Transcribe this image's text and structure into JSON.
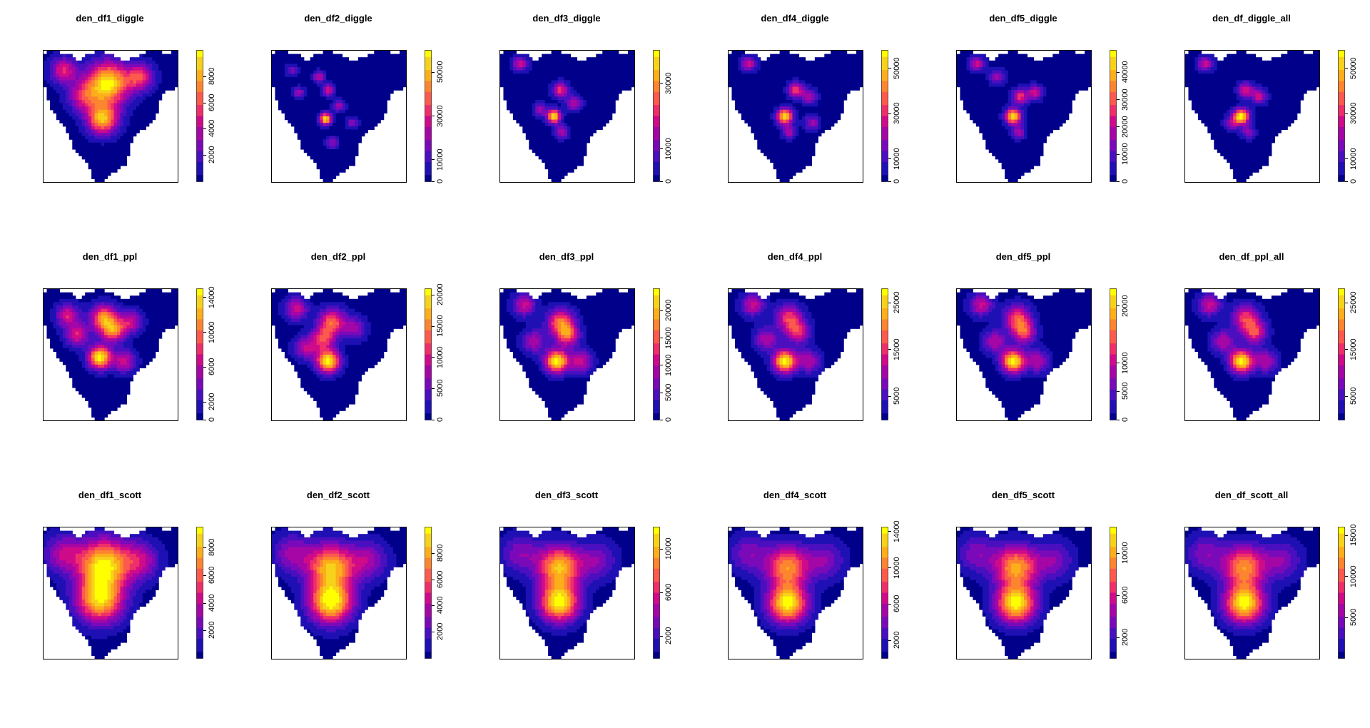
{
  "figure": {
    "rows": [
      "diggle",
      "ppl",
      "scott"
    ],
    "colormap": [
      "#00008b",
      "#1f10b4",
      "#4a0fbf",
      "#7a0ab9",
      "#a506a6",
      "#cf0b8a",
      "#ee2f6a",
      "#fb5a4c",
      "#fd852f",
      "#fcae1b",
      "#f7d21a",
      "#ffff00"
    ],
    "background": "#ffffff"
  },
  "chart_data": [
    {
      "type": "heatmap",
      "title": "den_df1_diggle",
      "legend_ticks": [
        "2000",
        "4000",
        "6000",
        "8000"
      ],
      "legend_values": [
        2000,
        4000,
        6000,
        8000
      ],
      "zlim": [
        0,
        10000
      ],
      "hotspots": [
        {
          "x": 0.48,
          "y": 0.25,
          "value": 1.0,
          "spread": 0.11
        },
        {
          "x": 0.44,
          "y": 0.52,
          "value": 0.85,
          "spread": 0.08
        },
        {
          "x": 0.72,
          "y": 0.2,
          "value": 0.55,
          "spread": 0.07
        },
        {
          "x": 0.15,
          "y": 0.15,
          "value": 0.5,
          "spread": 0.07
        },
        {
          "x": 0.3,
          "y": 0.35,
          "value": 0.45,
          "spread": 0.08
        }
      ]
    },
    {
      "type": "heatmap",
      "title": "den_df2_diggle",
      "legend_ticks": [
        "0",
        "10000",
        "30000",
        "50000"
      ],
      "legend_values": [
        0,
        10000,
        30000,
        50000
      ],
      "zlim": [
        0,
        60000
      ],
      "hotspots": [
        {
          "x": 0.4,
          "y": 0.52,
          "value": 1.0,
          "spread": 0.03
        },
        {
          "x": 0.42,
          "y": 0.3,
          "value": 0.5,
          "spread": 0.03
        },
        {
          "x": 0.35,
          "y": 0.2,
          "value": 0.45,
          "spread": 0.03
        },
        {
          "x": 0.5,
          "y": 0.42,
          "value": 0.4,
          "spread": 0.03
        },
        {
          "x": 0.2,
          "y": 0.32,
          "value": 0.35,
          "spread": 0.03
        },
        {
          "x": 0.6,
          "y": 0.55,
          "value": 0.3,
          "spread": 0.03
        },
        {
          "x": 0.45,
          "y": 0.7,
          "value": 0.35,
          "spread": 0.03
        },
        {
          "x": 0.15,
          "y": 0.15,
          "value": 0.3,
          "spread": 0.03
        }
      ]
    },
    {
      "type": "heatmap",
      "title": "den_df3_diggle",
      "legend_ticks": [
        "0",
        "10000",
        "30000"
      ],
      "legend_values": [
        0,
        10000,
        30000
      ],
      "zlim": [
        0,
        40000
      ],
      "hotspots": [
        {
          "x": 0.4,
          "y": 0.5,
          "value": 1.0,
          "spread": 0.035
        },
        {
          "x": 0.45,
          "y": 0.3,
          "value": 0.55,
          "spread": 0.04
        },
        {
          "x": 0.15,
          "y": 0.1,
          "value": 0.45,
          "spread": 0.04
        },
        {
          "x": 0.55,
          "y": 0.4,
          "value": 0.4,
          "spread": 0.04
        },
        {
          "x": 0.3,
          "y": 0.45,
          "value": 0.35,
          "spread": 0.035
        },
        {
          "x": 0.46,
          "y": 0.62,
          "value": 0.4,
          "spread": 0.035
        }
      ]
    },
    {
      "type": "heatmap",
      "title": "den_df4_diggle",
      "legend_ticks": [
        "0",
        "10000",
        "30000",
        "50000"
      ],
      "legend_values": [
        0,
        10000,
        30000,
        50000
      ],
      "zlim": [
        0,
        58000
      ],
      "hotspots": [
        {
          "x": 0.42,
          "y": 0.5,
          "value": 1.0,
          "spread": 0.04
        },
        {
          "x": 0.5,
          "y": 0.3,
          "value": 0.55,
          "spread": 0.04
        },
        {
          "x": 0.15,
          "y": 0.1,
          "value": 0.45,
          "spread": 0.04
        },
        {
          "x": 0.6,
          "y": 0.35,
          "value": 0.4,
          "spread": 0.04
        },
        {
          "x": 0.62,
          "y": 0.55,
          "value": 0.35,
          "spread": 0.04
        },
        {
          "x": 0.45,
          "y": 0.62,
          "value": 0.4,
          "spread": 0.035
        }
      ]
    },
    {
      "type": "heatmap",
      "title": "den_df5_diggle",
      "legend_ticks": [
        "0",
        "10000",
        "20000",
        "30000",
        "40000"
      ],
      "legend_values": [
        0,
        10000,
        20000,
        30000,
        40000
      ],
      "zlim": [
        0,
        48000
      ],
      "hotspots": [
        {
          "x": 0.42,
          "y": 0.5,
          "value": 1.0,
          "spread": 0.04
        },
        {
          "x": 0.47,
          "y": 0.35,
          "value": 0.55,
          "spread": 0.04
        },
        {
          "x": 0.15,
          "y": 0.1,
          "value": 0.45,
          "spread": 0.04
        },
        {
          "x": 0.58,
          "y": 0.32,
          "value": 0.45,
          "spread": 0.04
        },
        {
          "x": 0.3,
          "y": 0.2,
          "value": 0.35,
          "spread": 0.04
        },
        {
          "x": 0.46,
          "y": 0.62,
          "value": 0.4,
          "spread": 0.035
        }
      ]
    },
    {
      "type": "heatmap",
      "title": "den_df_diggle_all",
      "legend_ticks": [
        "0",
        "10000",
        "30000",
        "50000"
      ],
      "legend_values": [
        0,
        10000,
        30000,
        50000
      ],
      "zlim": [
        0,
        58000
      ],
      "hotspots": [
        {
          "x": 0.42,
          "y": 0.5,
          "value": 1.0,
          "spread": 0.04
        },
        {
          "x": 0.45,
          "y": 0.3,
          "value": 0.5,
          "spread": 0.04
        },
        {
          "x": 0.15,
          "y": 0.1,
          "value": 0.45,
          "spread": 0.04
        },
        {
          "x": 0.55,
          "y": 0.35,
          "value": 0.45,
          "spread": 0.04
        },
        {
          "x": 0.35,
          "y": 0.55,
          "value": 0.35,
          "spread": 0.04
        },
        {
          "x": 0.47,
          "y": 0.62,
          "value": 0.35,
          "spread": 0.035
        }
      ]
    },
    {
      "type": "heatmap",
      "title": "den_df1_ppl",
      "legend_ticks": [
        "0",
        "2000",
        "6000",
        "10000",
        "14000"
      ],
      "legend_values": [
        0,
        2000,
        6000,
        10000,
        14000
      ],
      "zlim": [
        0,
        15000
      ],
      "hotspots": [
        {
          "x": 0.42,
          "y": 0.52,
          "value": 1.0,
          "spread": 0.06
        },
        {
          "x": 0.45,
          "y": 0.22,
          "value": 0.75,
          "spread": 0.07
        },
        {
          "x": 0.52,
          "y": 0.32,
          "value": 0.65,
          "spread": 0.06
        },
        {
          "x": 0.18,
          "y": 0.2,
          "value": 0.5,
          "spread": 0.06
        },
        {
          "x": 0.65,
          "y": 0.25,
          "value": 0.45,
          "spread": 0.06
        },
        {
          "x": 0.25,
          "y": 0.35,
          "value": 0.5,
          "spread": 0.06
        },
        {
          "x": 0.6,
          "y": 0.55,
          "value": 0.45,
          "spread": 0.06
        }
      ]
    },
    {
      "type": "heatmap",
      "title": "den_df2_ppl",
      "legend_ticks": [
        "0",
        "5000",
        "10000",
        "15000",
        "20000"
      ],
      "legend_values": [
        0,
        5000,
        10000,
        15000,
        20000
      ],
      "zlim": [
        0,
        21000
      ],
      "hotspots": [
        {
          "x": 0.42,
          "y": 0.55,
          "value": 1.0,
          "spread": 0.06
        },
        {
          "x": 0.45,
          "y": 0.25,
          "value": 0.65,
          "spread": 0.07
        },
        {
          "x": 0.38,
          "y": 0.38,
          "value": 0.55,
          "spread": 0.06
        },
        {
          "x": 0.18,
          "y": 0.15,
          "value": 0.45,
          "spread": 0.06
        },
        {
          "x": 0.25,
          "y": 0.45,
          "value": 0.4,
          "spread": 0.06
        },
        {
          "x": 0.62,
          "y": 0.3,
          "value": 0.35,
          "spread": 0.06
        }
      ]
    },
    {
      "type": "heatmap",
      "title": "den_df3_ppl",
      "legend_ticks": [
        "0",
        "5000",
        "10000",
        "15000",
        "20000"
      ],
      "legend_values": [
        0,
        5000,
        10000,
        15000,
        20000
      ],
      "zlim": [
        0,
        24000
      ],
      "hotspots": [
        {
          "x": 0.42,
          "y": 0.55,
          "value": 1.0,
          "spread": 0.06
        },
        {
          "x": 0.45,
          "y": 0.25,
          "value": 0.65,
          "spread": 0.07
        },
        {
          "x": 0.5,
          "y": 0.35,
          "value": 0.6,
          "spread": 0.06
        },
        {
          "x": 0.18,
          "y": 0.12,
          "value": 0.45,
          "spread": 0.06
        },
        {
          "x": 0.25,
          "y": 0.4,
          "value": 0.4,
          "spread": 0.06
        },
        {
          "x": 0.6,
          "y": 0.55,
          "value": 0.45,
          "spread": 0.06
        }
      ]
    },
    {
      "type": "heatmap",
      "title": "den_df4_ppl",
      "legend_ticks": [
        "5000",
        "15000",
        "25000"
      ],
      "legend_values": [
        5000,
        15000,
        25000
      ],
      "zlim": [
        0,
        28000
      ],
      "hotspots": [
        {
          "x": 0.42,
          "y": 0.55,
          "value": 1.0,
          "spread": 0.06
        },
        {
          "x": 0.45,
          "y": 0.22,
          "value": 0.55,
          "spread": 0.07
        },
        {
          "x": 0.52,
          "y": 0.33,
          "value": 0.5,
          "spread": 0.06
        },
        {
          "x": 0.18,
          "y": 0.12,
          "value": 0.45,
          "spread": 0.06
        },
        {
          "x": 0.28,
          "y": 0.38,
          "value": 0.4,
          "spread": 0.06
        },
        {
          "x": 0.6,
          "y": 0.55,
          "value": 0.4,
          "spread": 0.06
        }
      ]
    },
    {
      "type": "heatmap",
      "title": "den_df5_ppl",
      "legend_ticks": [
        "0",
        "5000",
        "10000",
        "20000"
      ],
      "legend_values": [
        0,
        5000,
        10000,
        20000
      ],
      "zlim": [
        0,
        23000
      ],
      "hotspots": [
        {
          "x": 0.42,
          "y": 0.55,
          "value": 1.0,
          "spread": 0.06
        },
        {
          "x": 0.45,
          "y": 0.22,
          "value": 0.6,
          "spread": 0.07
        },
        {
          "x": 0.5,
          "y": 0.33,
          "value": 0.55,
          "spread": 0.06
        },
        {
          "x": 0.18,
          "y": 0.12,
          "value": 0.45,
          "spread": 0.06
        },
        {
          "x": 0.28,
          "y": 0.4,
          "value": 0.4,
          "spread": 0.06
        },
        {
          "x": 0.6,
          "y": 0.55,
          "value": 0.4,
          "spread": 0.06
        }
      ]
    },
    {
      "type": "heatmap",
      "title": "den_df_ppl_all",
      "legend_ticks": [
        "5000",
        "15000",
        "25000"
      ],
      "legend_values": [
        5000,
        15000,
        25000
      ],
      "zlim": [
        0,
        28000
      ],
      "hotspots": [
        {
          "x": 0.42,
          "y": 0.55,
          "value": 1.0,
          "spread": 0.06
        },
        {
          "x": 0.45,
          "y": 0.22,
          "value": 0.55,
          "spread": 0.07
        },
        {
          "x": 0.52,
          "y": 0.33,
          "value": 0.55,
          "spread": 0.06
        },
        {
          "x": 0.18,
          "y": 0.12,
          "value": 0.45,
          "spread": 0.06
        },
        {
          "x": 0.28,
          "y": 0.4,
          "value": 0.4,
          "spread": 0.06
        },
        {
          "x": 0.6,
          "y": 0.55,
          "value": 0.4,
          "spread": 0.06
        }
      ]
    },
    {
      "type": "heatmap",
      "title": "den_df1_scott",
      "legend_ticks": [
        "2000",
        "4000",
        "6000",
        "8000"
      ],
      "legend_values": [
        2000,
        4000,
        6000,
        8000
      ],
      "zlim": [
        0,
        9500
      ],
      "hotspots": [
        {
          "x": 0.45,
          "y": 0.28,
          "value": 0.95,
          "spread": 0.13
        },
        {
          "x": 0.42,
          "y": 0.55,
          "value": 0.9,
          "spread": 0.12
        },
        {
          "x": 0.72,
          "y": 0.25,
          "value": 0.4,
          "spread": 0.1
        },
        {
          "x": 0.15,
          "y": 0.2,
          "value": 0.4,
          "spread": 0.1
        }
      ]
    },
    {
      "type": "heatmap",
      "title": "den_df2_scott",
      "legend_ticks": [
        "2000",
        "4000",
        "6000",
        "8000"
      ],
      "legend_values": [
        2000,
        4000,
        6000,
        8000
      ],
      "zlim": [
        0,
        10000
      ],
      "hotspots": [
        {
          "x": 0.44,
          "y": 0.3,
          "value": 0.85,
          "spread": 0.12
        },
        {
          "x": 0.44,
          "y": 0.57,
          "value": 1.0,
          "spread": 0.11
        },
        {
          "x": 0.72,
          "y": 0.25,
          "value": 0.35,
          "spread": 0.1
        },
        {
          "x": 0.15,
          "y": 0.2,
          "value": 0.35,
          "spread": 0.1
        }
      ]
    },
    {
      "type": "heatmap",
      "title": "den_df3_scott",
      "legend_ticks": [
        "2000",
        "6000",
        "10000"
      ],
      "legend_values": [
        2000,
        6000,
        10000
      ],
      "zlim": [
        0,
        12000
      ],
      "hotspots": [
        {
          "x": 0.44,
          "y": 0.3,
          "value": 0.85,
          "spread": 0.11
        },
        {
          "x": 0.44,
          "y": 0.57,
          "value": 1.0,
          "spread": 0.1
        },
        {
          "x": 0.72,
          "y": 0.25,
          "value": 0.3,
          "spread": 0.1
        },
        {
          "x": 0.15,
          "y": 0.2,
          "value": 0.3,
          "spread": 0.1
        }
      ]
    },
    {
      "type": "heatmap",
      "title": "den_df4_scott",
      "legend_ticks": [
        "2000",
        "6000",
        "10000",
        "14000"
      ],
      "legend_values": [
        2000,
        6000,
        10000,
        14000
      ],
      "zlim": [
        0,
        14500
      ],
      "hotspots": [
        {
          "x": 0.44,
          "y": 0.3,
          "value": 0.75,
          "spread": 0.11
        },
        {
          "x": 0.44,
          "y": 0.58,
          "value": 1.0,
          "spread": 0.1
        },
        {
          "x": 0.72,
          "y": 0.25,
          "value": 0.3,
          "spread": 0.1
        },
        {
          "x": 0.15,
          "y": 0.2,
          "value": 0.3,
          "spread": 0.1
        }
      ]
    },
    {
      "type": "heatmap",
      "title": "den_df5_scott",
      "legend_ticks": [
        "2000",
        "6000",
        "10000"
      ],
      "legend_values": [
        2000,
        6000,
        10000
      ],
      "zlim": [
        0,
        12500
      ],
      "hotspots": [
        {
          "x": 0.44,
          "y": 0.3,
          "value": 0.8,
          "spread": 0.11
        },
        {
          "x": 0.44,
          "y": 0.58,
          "value": 1.0,
          "spread": 0.1
        },
        {
          "x": 0.72,
          "y": 0.25,
          "value": 0.3,
          "spread": 0.1
        },
        {
          "x": 0.15,
          "y": 0.2,
          "value": 0.3,
          "spread": 0.1
        }
      ]
    },
    {
      "type": "heatmap",
      "title": "den_df_scott_all",
      "legend_ticks": [
        "5000",
        "10000",
        "15000"
      ],
      "legend_values": [
        5000,
        10000,
        15000
      ],
      "zlim": [
        0,
        16000
      ],
      "hotspots": [
        {
          "x": 0.44,
          "y": 0.3,
          "value": 0.75,
          "spread": 0.11
        },
        {
          "x": 0.44,
          "y": 0.58,
          "value": 1.0,
          "spread": 0.1
        },
        {
          "x": 0.72,
          "y": 0.25,
          "value": 0.3,
          "spread": 0.1
        },
        {
          "x": 0.15,
          "y": 0.2,
          "value": 0.3,
          "spread": 0.1
        }
      ]
    }
  ]
}
